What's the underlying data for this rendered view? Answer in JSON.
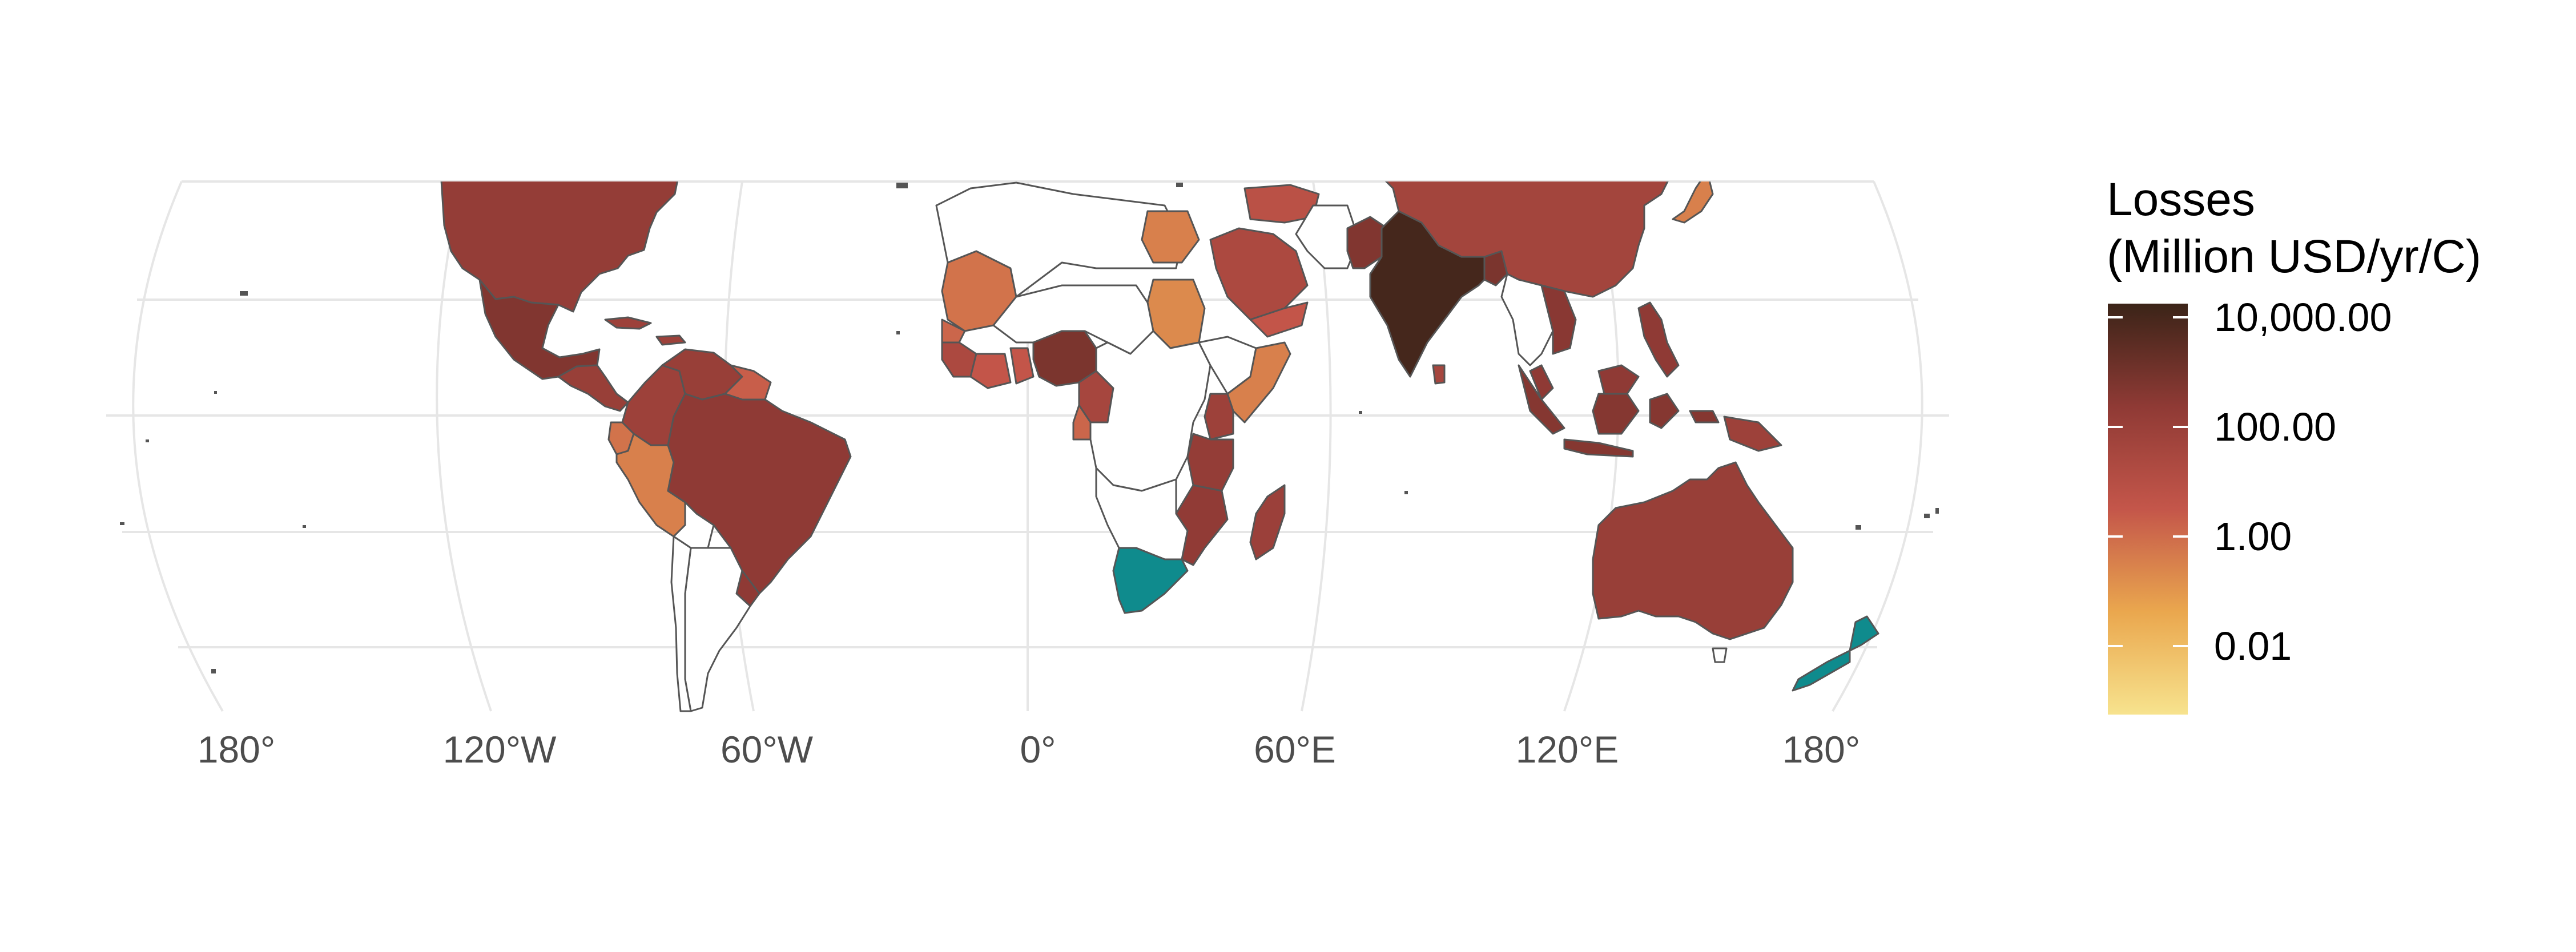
{
  "map": {
    "projection": "robinson",
    "graticule": "on",
    "longitude_labels": [
      "180°",
      "120°W",
      "60°W",
      "0°",
      "60°E",
      "120°E",
      "180°"
    ],
    "legend": {
      "title_line1": "Losses",
      "title_line2": "(Million USD/yr/C)",
      "scale": "log10",
      "range": [
        0.001,
        20000
      ],
      "ticks": [
        "10,000.00",
        "100.00",
        "1.00",
        "0.01"
      ],
      "colors": [
        "#f7e38e",
        "#eaa74e",
        "#c4564a",
        "#8f3a35",
        "#3b2418"
      ],
      "placement": "right"
    },
    "special_color_note": "teal = different category",
    "colors": {
      "no_data": "#ffffff",
      "border": "#555555",
      "graticule": "#e6e6e6",
      "teal": "#0f8b8d"
    },
    "regions": [
      {
        "name": "United States",
        "value": 200
      },
      {
        "name": "Mexico",
        "value": 600
      },
      {
        "name": "Central America",
        "value": 150
      },
      {
        "name": "Caribbean",
        "value": 100
      },
      {
        "name": "Colombia",
        "value": 100
      },
      {
        "name": "Venezuela",
        "value": 150
      },
      {
        "name": "Guianas",
        "value": 3
      },
      {
        "name": "Ecuador",
        "value": 1
      },
      {
        "name": "Peru",
        "value": 0.5
      },
      {
        "name": "Brazil",
        "value": 300
      },
      {
        "name": "Uruguay",
        "value": 300
      },
      {
        "name": "Bolivia",
        "value": null
      },
      {
        "name": "Argentina",
        "value": null
      },
      {
        "name": "Chile",
        "value": null
      },
      {
        "name": "Mali",
        "value": 1
      },
      {
        "name": "Senegal",
        "value": 2
      },
      {
        "name": "Guinea",
        "value": 30
      },
      {
        "name": "Ivory Coast",
        "value": 5
      },
      {
        "name": "Ghana",
        "value": 5
      },
      {
        "name": "Nigeria",
        "value": 800
      },
      {
        "name": "Cameroon",
        "value": 50
      },
      {
        "name": "Gabon",
        "value": 2
      },
      {
        "name": "Sudan",
        "value": 0.3
      },
      {
        "name": "Egypt",
        "value": 0.5
      },
      {
        "name": "Saudi Arabia",
        "value": 30
      },
      {
        "name": "Turkey",
        "value": 10
      },
      {
        "name": "Yemen",
        "value": 5
      },
      {
        "name": "Somalia",
        "value": 0.5
      },
      {
        "name": "Kenya",
        "value": 100
      },
      {
        "name": "Tanzania",
        "value": 200
      },
      {
        "name": "Mozambique",
        "value": 250
      },
      {
        "name": "Madagascar",
        "value": 120
      },
      {
        "name": "South Africa",
        "value": "teal"
      },
      {
        "name": "Pakistan",
        "value": 600
      },
      {
        "name": "India",
        "value": 12000
      },
      {
        "name": "Bangladesh",
        "value": 800
      },
      {
        "name": "Sri Lanka",
        "value": 50
      },
      {
        "name": "China",
        "value": 60
      },
      {
        "name": "Japan",
        "value": 0.5
      },
      {
        "name": "Thailand",
        "value": 80
      },
      {
        "name": "Vietnam",
        "value": 400
      },
      {
        "name": "Philippines",
        "value": 300
      },
      {
        "name": "Malaysia",
        "value": 300
      },
      {
        "name": "Indonesia",
        "value": 500
      },
      {
        "name": "Papua New Guinea",
        "value": 100
      },
      {
        "name": "Australia",
        "value": 150
      },
      {
        "name": "New Zealand",
        "value": "teal"
      }
    ]
  }
}
